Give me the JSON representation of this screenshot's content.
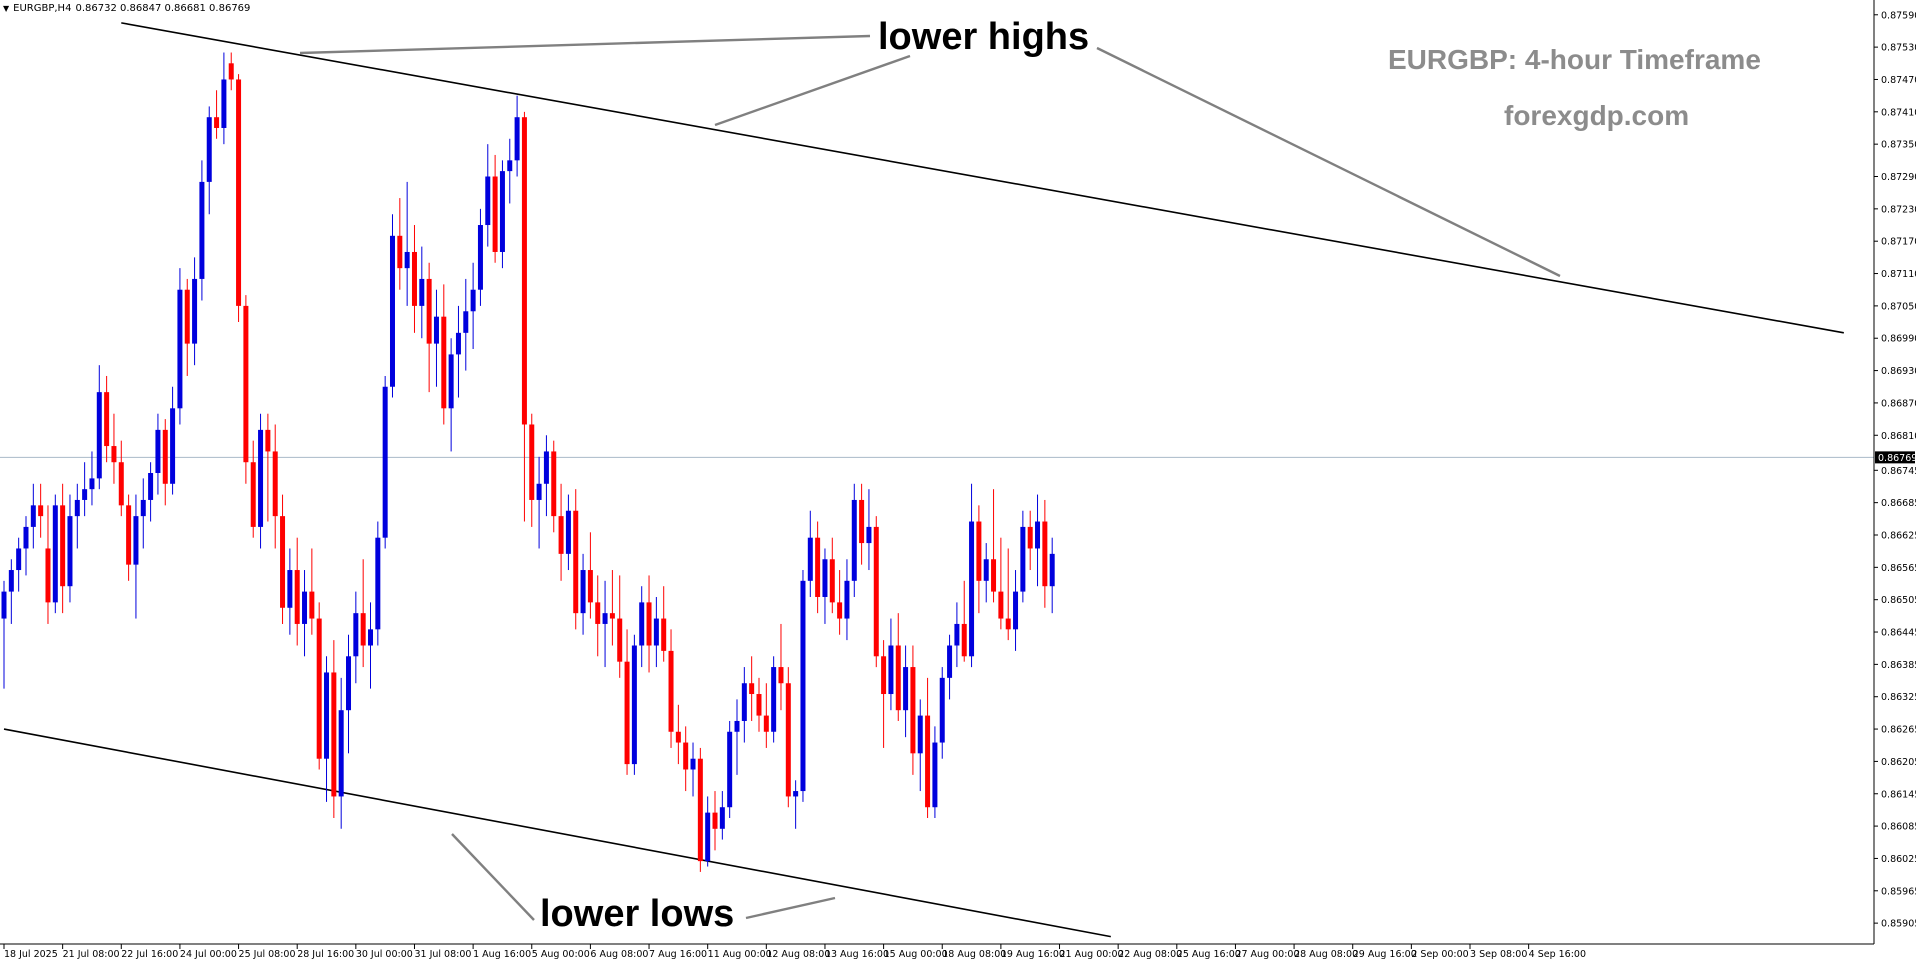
{
  "header": {
    "menu_icon": "triangle-down-icon",
    "symbol": "EURGBP,H4",
    "ohlc": "0.86732 0.86847 0.86681 0.86769"
  },
  "watermark": {
    "title": "EURGBP: 4-hour Timeframe",
    "site": "forexgdp.com"
  },
  "annotations": {
    "lower_highs": "lower highs",
    "lower_lows": "lower lows"
  },
  "colors": {
    "bull": "#0000dd",
    "bear": "#ff0000",
    "trendline": "#000000",
    "pointer": "#808080",
    "current_line": "#a9b9c8",
    "axis": "#000000",
    "watermark": "#8c8c8c"
  },
  "chart_data": {
    "type": "candlestick",
    "symbol": "EURGBP",
    "timeframe": "H4",
    "current_price": "0.86769",
    "ylim": [
      0.8587,
      0.8761
    ],
    "y_ticks": [
      "0.87590",
      "0.87530",
      "0.87470",
      "0.87410",
      "0.87350",
      "0.87290",
      "0.87230",
      "0.87170",
      "0.87110",
      "0.87050",
      "0.86990",
      "0.86930",
      "0.86870",
      "0.86810",
      "0.86745",
      "0.86685",
      "0.86625",
      "0.86565",
      "0.86505",
      "0.86445",
      "0.86385",
      "0.86325",
      "0.86265",
      "0.86205",
      "0.86145",
      "0.86085",
      "0.86025",
      "0.85965",
      "0.85905"
    ],
    "x_ticks": [
      "18 Jul 2025",
      "21 Jul 08:00",
      "22 Jul 16:00",
      "24 Jul 00:00",
      "25 Jul 08:00",
      "28 Jul 16:00",
      "30 Jul 00:00",
      "31 Jul 08:00",
      "1 Aug 16:00",
      "5 Aug 00:00",
      "6 Aug 08:00",
      "7 Aug 16:00",
      "11 Aug 00:00",
      "12 Aug 08:00",
      "13 Aug 16:00",
      "15 Aug 00:00",
      "18 Aug 08:00",
      "19 Aug 16:00",
      "21 Aug 00:00",
      "22 Aug 08:00",
      "25 Aug 16:00",
      "27 Aug 00:00",
      "28 Aug 08:00",
      "29 Aug 16:00",
      "2 Sep 00:00",
      "3 Sep 08:00",
      "4 Sep 16:00"
    ],
    "x_tick_candle_index": [
      0,
      8,
      16,
      24,
      32,
      40,
      48,
      56,
      64,
      72,
      80,
      88,
      96,
      104,
      112,
      120,
      128,
      136,
      144,
      152,
      160,
      168,
      176,
      184,
      192,
      200,
      208
    ],
    "candles_ohlc": [
      [
        0.8647,
        0.8654,
        0.8634,
        0.8652
      ],
      [
        0.8652,
        0.8658,
        0.8646,
        0.8656
      ],
      [
        0.8656,
        0.8662,
        0.8652,
        0.866
      ],
      [
        0.866,
        0.8666,
        0.8655,
        0.8664
      ],
      [
        0.8664,
        0.8672,
        0.866,
        0.8668
      ],
      [
        0.8668,
        0.8672,
        0.8662,
        0.8666
      ],
      [
        0.866,
        0.8668,
        0.8646,
        0.865
      ],
      [
        0.865,
        0.867,
        0.8648,
        0.8668
      ],
      [
        0.8668,
        0.8672,
        0.8648,
        0.8653
      ],
      [
        0.8653,
        0.867,
        0.865,
        0.8666
      ],
      [
        0.8666,
        0.8672,
        0.866,
        0.8669
      ],
      [
        0.8669,
        0.8676,
        0.8666,
        0.8671
      ],
      [
        0.8671,
        0.8678,
        0.8668,
        0.8673
      ],
      [
        0.8673,
        0.8694,
        0.8671,
        0.8689
      ],
      [
        0.8689,
        0.8692,
        0.8676,
        0.8679
      ],
      [
        0.8679,
        0.8685,
        0.8672,
        0.8676
      ],
      [
        0.8676,
        0.868,
        0.8666,
        0.8668
      ],
      [
        0.8668,
        0.867,
        0.8654,
        0.8657
      ],
      [
        0.8657,
        0.867,
        0.8647,
        0.8666
      ],
      [
        0.8666,
        0.8673,
        0.866,
        0.8669
      ],
      [
        0.8669,
        0.8676,
        0.8665,
        0.8674
      ],
      [
        0.8674,
        0.8685,
        0.867,
        0.8682
      ],
      [
        0.8682,
        0.8684,
        0.8668,
        0.8672
      ],
      [
        0.8672,
        0.869,
        0.867,
        0.8686
      ],
      [
        0.8686,
        0.8712,
        0.8683,
        0.8708
      ],
      [
        0.8708,
        0.871,
        0.8692,
        0.8698
      ],
      [
        0.8698,
        0.8714,
        0.8694,
        0.871
      ],
      [
        0.871,
        0.8732,
        0.8706,
        0.8728
      ],
      [
        0.8728,
        0.8742,
        0.8722,
        0.874
      ],
      [
        0.874,
        0.8745,
        0.8736,
        0.8738
      ],
      [
        0.8738,
        0.8752,
        0.8735,
        0.8747
      ],
      [
        0.875,
        0.8752,
        0.8745,
        0.8747
      ],
      [
        0.8747,
        0.8748,
        0.8702,
        0.8705
      ],
      [
        0.8705,
        0.8707,
        0.8672,
        0.8676
      ],
      [
        0.8676,
        0.868,
        0.8662,
        0.8664
      ],
      [
        0.8664,
        0.8685,
        0.866,
        0.8682
      ],
      [
        0.8682,
        0.8685,
        0.8665,
        0.8678
      ],
      [
        0.8678,
        0.8683,
        0.866,
        0.8666
      ],
      [
        0.8666,
        0.867,
        0.8646,
        0.8649
      ],
      [
        0.8649,
        0.866,
        0.8644,
        0.8656
      ],
      [
        0.8656,
        0.8662,
        0.8642,
        0.8646
      ],
      [
        0.8646,
        0.8656,
        0.864,
        0.8652
      ],
      [
        0.8652,
        0.866,
        0.8644,
        0.8647
      ],
      [
        0.8647,
        0.865,
        0.8619,
        0.8621
      ],
      [
        0.8621,
        0.864,
        0.8613,
        0.8637
      ],
      [
        0.8637,
        0.8643,
        0.861,
        0.8614
      ],
      [
        0.8614,
        0.8636,
        0.8608,
        0.863
      ],
      [
        0.863,
        0.8644,
        0.8622,
        0.864
      ],
      [
        0.864,
        0.8652,
        0.8635,
        0.8648
      ],
      [
        0.8648,
        0.8658,
        0.8638,
        0.8642
      ],
      [
        0.8642,
        0.865,
        0.8634,
        0.8645
      ],
      [
        0.8645,
        0.8665,
        0.8642,
        0.8662
      ],
      [
        0.8662,
        0.8692,
        0.866,
        0.869
      ],
      [
        0.869,
        0.8722,
        0.8688,
        0.8718
      ],
      [
        0.8718,
        0.8725,
        0.8708,
        0.8712
      ],
      [
        0.8712,
        0.8728,
        0.8705,
        0.8715
      ],
      [
        0.8715,
        0.872,
        0.87,
        0.8705
      ],
      [
        0.8705,
        0.8716,
        0.8699,
        0.871
      ],
      [
        0.871,
        0.8713,
        0.8689,
        0.8698
      ],
      [
        0.8698,
        0.8708,
        0.869,
        0.8703
      ],
      [
        0.8703,
        0.8709,
        0.8683,
        0.8686
      ],
      [
        0.8686,
        0.8699,
        0.8678,
        0.8696
      ],
      [
        0.8696,
        0.8705,
        0.8688,
        0.87
      ],
      [
        0.87,
        0.871,
        0.8693,
        0.8704
      ],
      [
        0.8704,
        0.8713,
        0.8697,
        0.8708
      ],
      [
        0.8708,
        0.8723,
        0.8705,
        0.872
      ],
      [
        0.872,
        0.8735,
        0.8716,
        0.8729
      ],
      [
        0.8729,
        0.8733,
        0.8713,
        0.8715
      ],
      [
        0.8715,
        0.8732,
        0.8712,
        0.873
      ],
      [
        0.873,
        0.8736,
        0.8724,
        0.8732
      ],
      [
        0.8732,
        0.8744,
        0.8729,
        0.874
      ],
      [
        0.874,
        0.8741,
        0.8665,
        0.8683
      ],
      [
        0.8683,
        0.8685,
        0.8664,
        0.8669
      ],
      [
        0.8669,
        0.8677,
        0.866,
        0.8672
      ],
      [
        0.8672,
        0.8681,
        0.8666,
        0.8678
      ],
      [
        0.8678,
        0.868,
        0.8663,
        0.8666
      ],
      [
        0.8666,
        0.8672,
        0.8654,
        0.8659
      ],
      [
        0.8659,
        0.867,
        0.8656,
        0.8667
      ],
      [
        0.8667,
        0.8671,
        0.8645,
        0.8648
      ],
      [
        0.8648,
        0.8659,
        0.8644,
        0.8656
      ],
      [
        0.8656,
        0.8663,
        0.8647,
        0.865
      ],
      [
        0.865,
        0.8655,
        0.864,
        0.8646
      ],
      [
        0.8646,
        0.8654,
        0.8638,
        0.8648
      ],
      [
        0.8648,
        0.8656,
        0.8642,
        0.8647
      ],
      [
        0.8647,
        0.8655,
        0.8636,
        0.8639
      ],
      [
        0.8639,
        0.8645,
        0.8618,
        0.862
      ],
      [
        0.862,
        0.8644,
        0.8618,
        0.8642
      ],
      [
        0.8642,
        0.8653,
        0.8638,
        0.865
      ],
      [
        0.865,
        0.8655,
        0.8637,
        0.8642
      ],
      [
        0.8642,
        0.8651,
        0.8638,
        0.8647
      ],
      [
        0.8647,
        0.8653,
        0.8639,
        0.8641
      ],
      [
        0.8641,
        0.8645,
        0.8623,
        0.8626
      ],
      [
        0.8626,
        0.8631,
        0.862,
        0.8624
      ],
      [
        0.8624,
        0.8627,
        0.8615,
        0.8619
      ],
      [
        0.8619,
        0.8624,
        0.8614,
        0.8621
      ],
      [
        0.8621,
        0.8623,
        0.86,
        0.8602
      ],
      [
        0.8602,
        0.8614,
        0.8601,
        0.8611
      ],
      [
        0.8611,
        0.8615,
        0.8604,
        0.8608
      ],
      [
        0.8608,
        0.8615,
        0.8606,
        0.8612
      ],
      [
        0.8612,
        0.8628,
        0.861,
        0.8626
      ],
      [
        0.8626,
        0.8632,
        0.8618,
        0.8628
      ],
      [
        0.8628,
        0.8638,
        0.8624,
        0.8635
      ],
      [
        0.8635,
        0.864,
        0.8628,
        0.8633
      ],
      [
        0.8633,
        0.8636,
        0.8626,
        0.8629
      ],
      [
        0.8629,
        0.8635,
        0.8623,
        0.8626
      ],
      [
        0.8626,
        0.864,
        0.8624,
        0.8638
      ],
      [
        0.8638,
        0.8646,
        0.863,
        0.8635
      ],
      [
        0.8635,
        0.8638,
        0.8612,
        0.8614
      ],
      [
        0.8614,
        0.8617,
        0.8608,
        0.8615
      ],
      [
        0.8615,
        0.8656,
        0.8613,
        0.8654
      ],
      [
        0.8654,
        0.8667,
        0.8651,
        0.8662
      ],
      [
        0.8662,
        0.8665,
        0.8648,
        0.8651
      ],
      [
        0.8651,
        0.866,
        0.8646,
        0.8658
      ],
      [
        0.8658,
        0.8662,
        0.8648,
        0.865
      ],
      [
        0.865,
        0.8656,
        0.8644,
        0.8647
      ],
      [
        0.8647,
        0.8658,
        0.8643,
        0.8654
      ],
      [
        0.8654,
        0.8672,
        0.8651,
        0.8669
      ],
      [
        0.8669,
        0.8672,
        0.8657,
        0.8661
      ],
      [
        0.8661,
        0.8671,
        0.8656,
        0.8664
      ],
      [
        0.8664,
        0.8666,
        0.8638,
        0.864
      ],
      [
        0.864,
        0.8643,
        0.8623,
        0.8633
      ],
      [
        0.8633,
        0.8647,
        0.863,
        0.8642
      ],
      [
        0.8642,
        0.8648,
        0.8628,
        0.863
      ],
      [
        0.863,
        0.8642,
        0.8625,
        0.8638
      ],
      [
        0.8638,
        0.8642,
        0.8618,
        0.8622
      ],
      [
        0.8622,
        0.8632,
        0.8615,
        0.8629
      ],
      [
        0.8629,
        0.8636,
        0.861,
        0.8612
      ],
      [
        0.8612,
        0.8627,
        0.861,
        0.8624
      ],
      [
        0.8624,
        0.8638,
        0.8621,
        0.8636
      ],
      [
        0.8636,
        0.8644,
        0.8632,
        0.8642
      ],
      [
        0.8642,
        0.865,
        0.8638,
        0.8646
      ],
      [
        0.8646,
        0.8654,
        0.8639,
        0.864
      ],
      [
        0.864,
        0.8672,
        0.8638,
        0.8665
      ],
      [
        0.8665,
        0.8668,
        0.8648,
        0.8654
      ],
      [
        0.8654,
        0.8661,
        0.865,
        0.8658
      ],
      [
        0.8658,
        0.8671,
        0.865,
        0.8652
      ],
      [
        0.8652,
        0.8662,
        0.8645,
        0.8647
      ],
      [
        0.8647,
        0.866,
        0.8643,
        0.8645
      ],
      [
        0.8645,
        0.8656,
        0.8641,
        0.8652
      ],
      [
        0.8652,
        0.8667,
        0.865,
        0.8664
      ],
      [
        0.8664,
        0.8667,
        0.8656,
        0.866
      ],
      [
        0.866,
        0.867,
        0.8653,
        0.8665
      ],
      [
        0.8665,
        0.8669,
        0.8649,
        0.8653
      ],
      [
        0.8653,
        0.8662,
        0.8648,
        0.8659
      ]
    ],
    "trendlines": [
      {
        "name": "upper",
        "from": {
          "candle": 16,
          "price": 0.87575
        },
        "to": {
          "candle": 251,
          "price": 0.87
        }
      },
      {
        "name": "lower",
        "from": {
          "candle": 0,
          "price": 0.86265
        },
        "to": {
          "candle": 151,
          "price": 0.8588
        }
      }
    ],
    "grid": false
  }
}
